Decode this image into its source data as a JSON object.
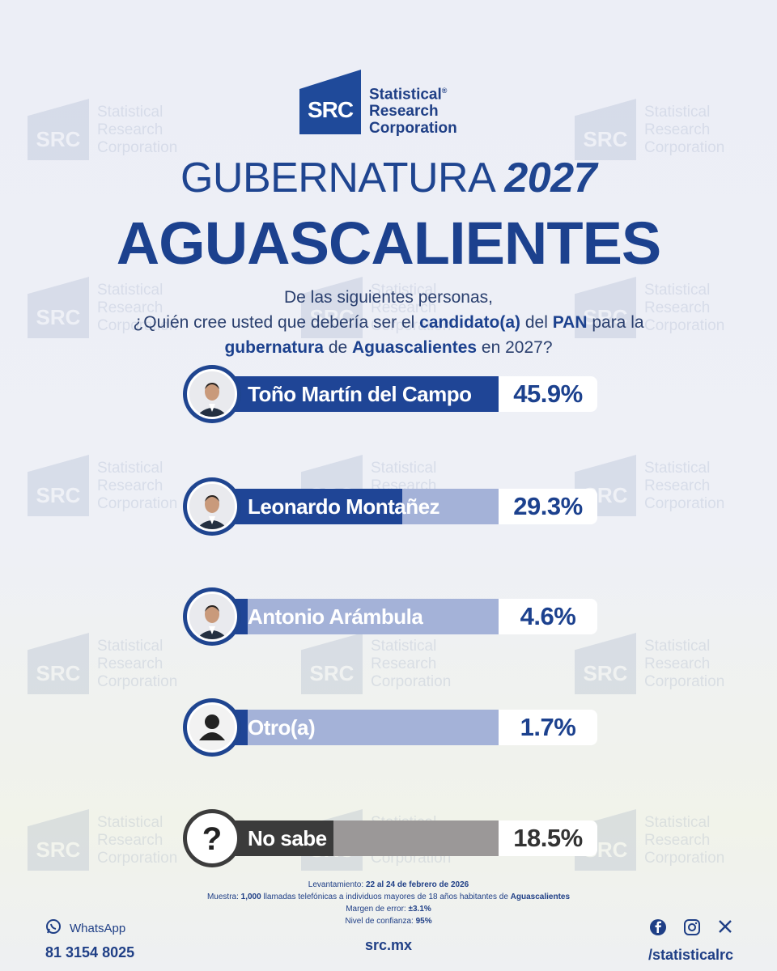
{
  "brand": {
    "mark": "SRC",
    "name_lines": [
      "Statistical",
      "Research",
      "Corporation"
    ],
    "registered": "®"
  },
  "header": {
    "title_regular": "GUBERNATURA ",
    "title_year": "2027",
    "title_state": "AGUASCALIENTES"
  },
  "question": {
    "line1": "De las siguientes personas,",
    "line2_pre": "¿Quién cree usted que debería ser el ",
    "line2_bold1": "candidato(a)",
    "line2_mid": " del ",
    "line2_bold2": "PAN",
    "line2_post": " para la",
    "line3_bold1": "gubernatura",
    "line3_mid": " de ",
    "line3_bold2": "Aguascalientes",
    "line3_post": " en 2027?"
  },
  "chart_data": {
    "type": "bar",
    "categories": [
      "Toño Martín del Campo",
      "Leonardo Montañez",
      "Antonio Arámbula",
      "Otro(a)",
      "No sabe"
    ],
    "values": [
      45.9,
      29.3,
      4.6,
      1.7,
      18.5
    ],
    "value_labels": [
      "45.9%",
      "29.3%",
      "4.6%",
      "1.7%",
      "18.5%"
    ],
    "unit": "%",
    "colors": {
      "candidate_fill": "#1f4596",
      "candidate_track": "#a4b2d8",
      "unknown_fill": "#3b3b3b",
      "unknown_track": "#9b9898"
    }
  },
  "methodology": {
    "lev_label": "Levantamiento: ",
    "lev_value": "22 al 24 de febrero de 2026",
    "muestra_label": "Muestra: ",
    "muestra_bold": "1,000",
    "muestra_text": " llamadas telefónicas a individuos mayores de 18 años habitantes de ",
    "muestra_place": "Aguascalientes",
    "margen_label": "Margen de error: ",
    "margen_value": "±3.1%",
    "nivel_label": "Nivel de confianza: ",
    "nivel_value": "95%"
  },
  "footer": {
    "whatsapp_label": "WhatsApp",
    "whatsapp_number": "81 3154 8025",
    "site": "src.mx",
    "social_handle": "/statisticalrc",
    "icons": [
      "whatsapp-icon",
      "facebook-icon",
      "instagram-icon",
      "x-icon"
    ]
  }
}
